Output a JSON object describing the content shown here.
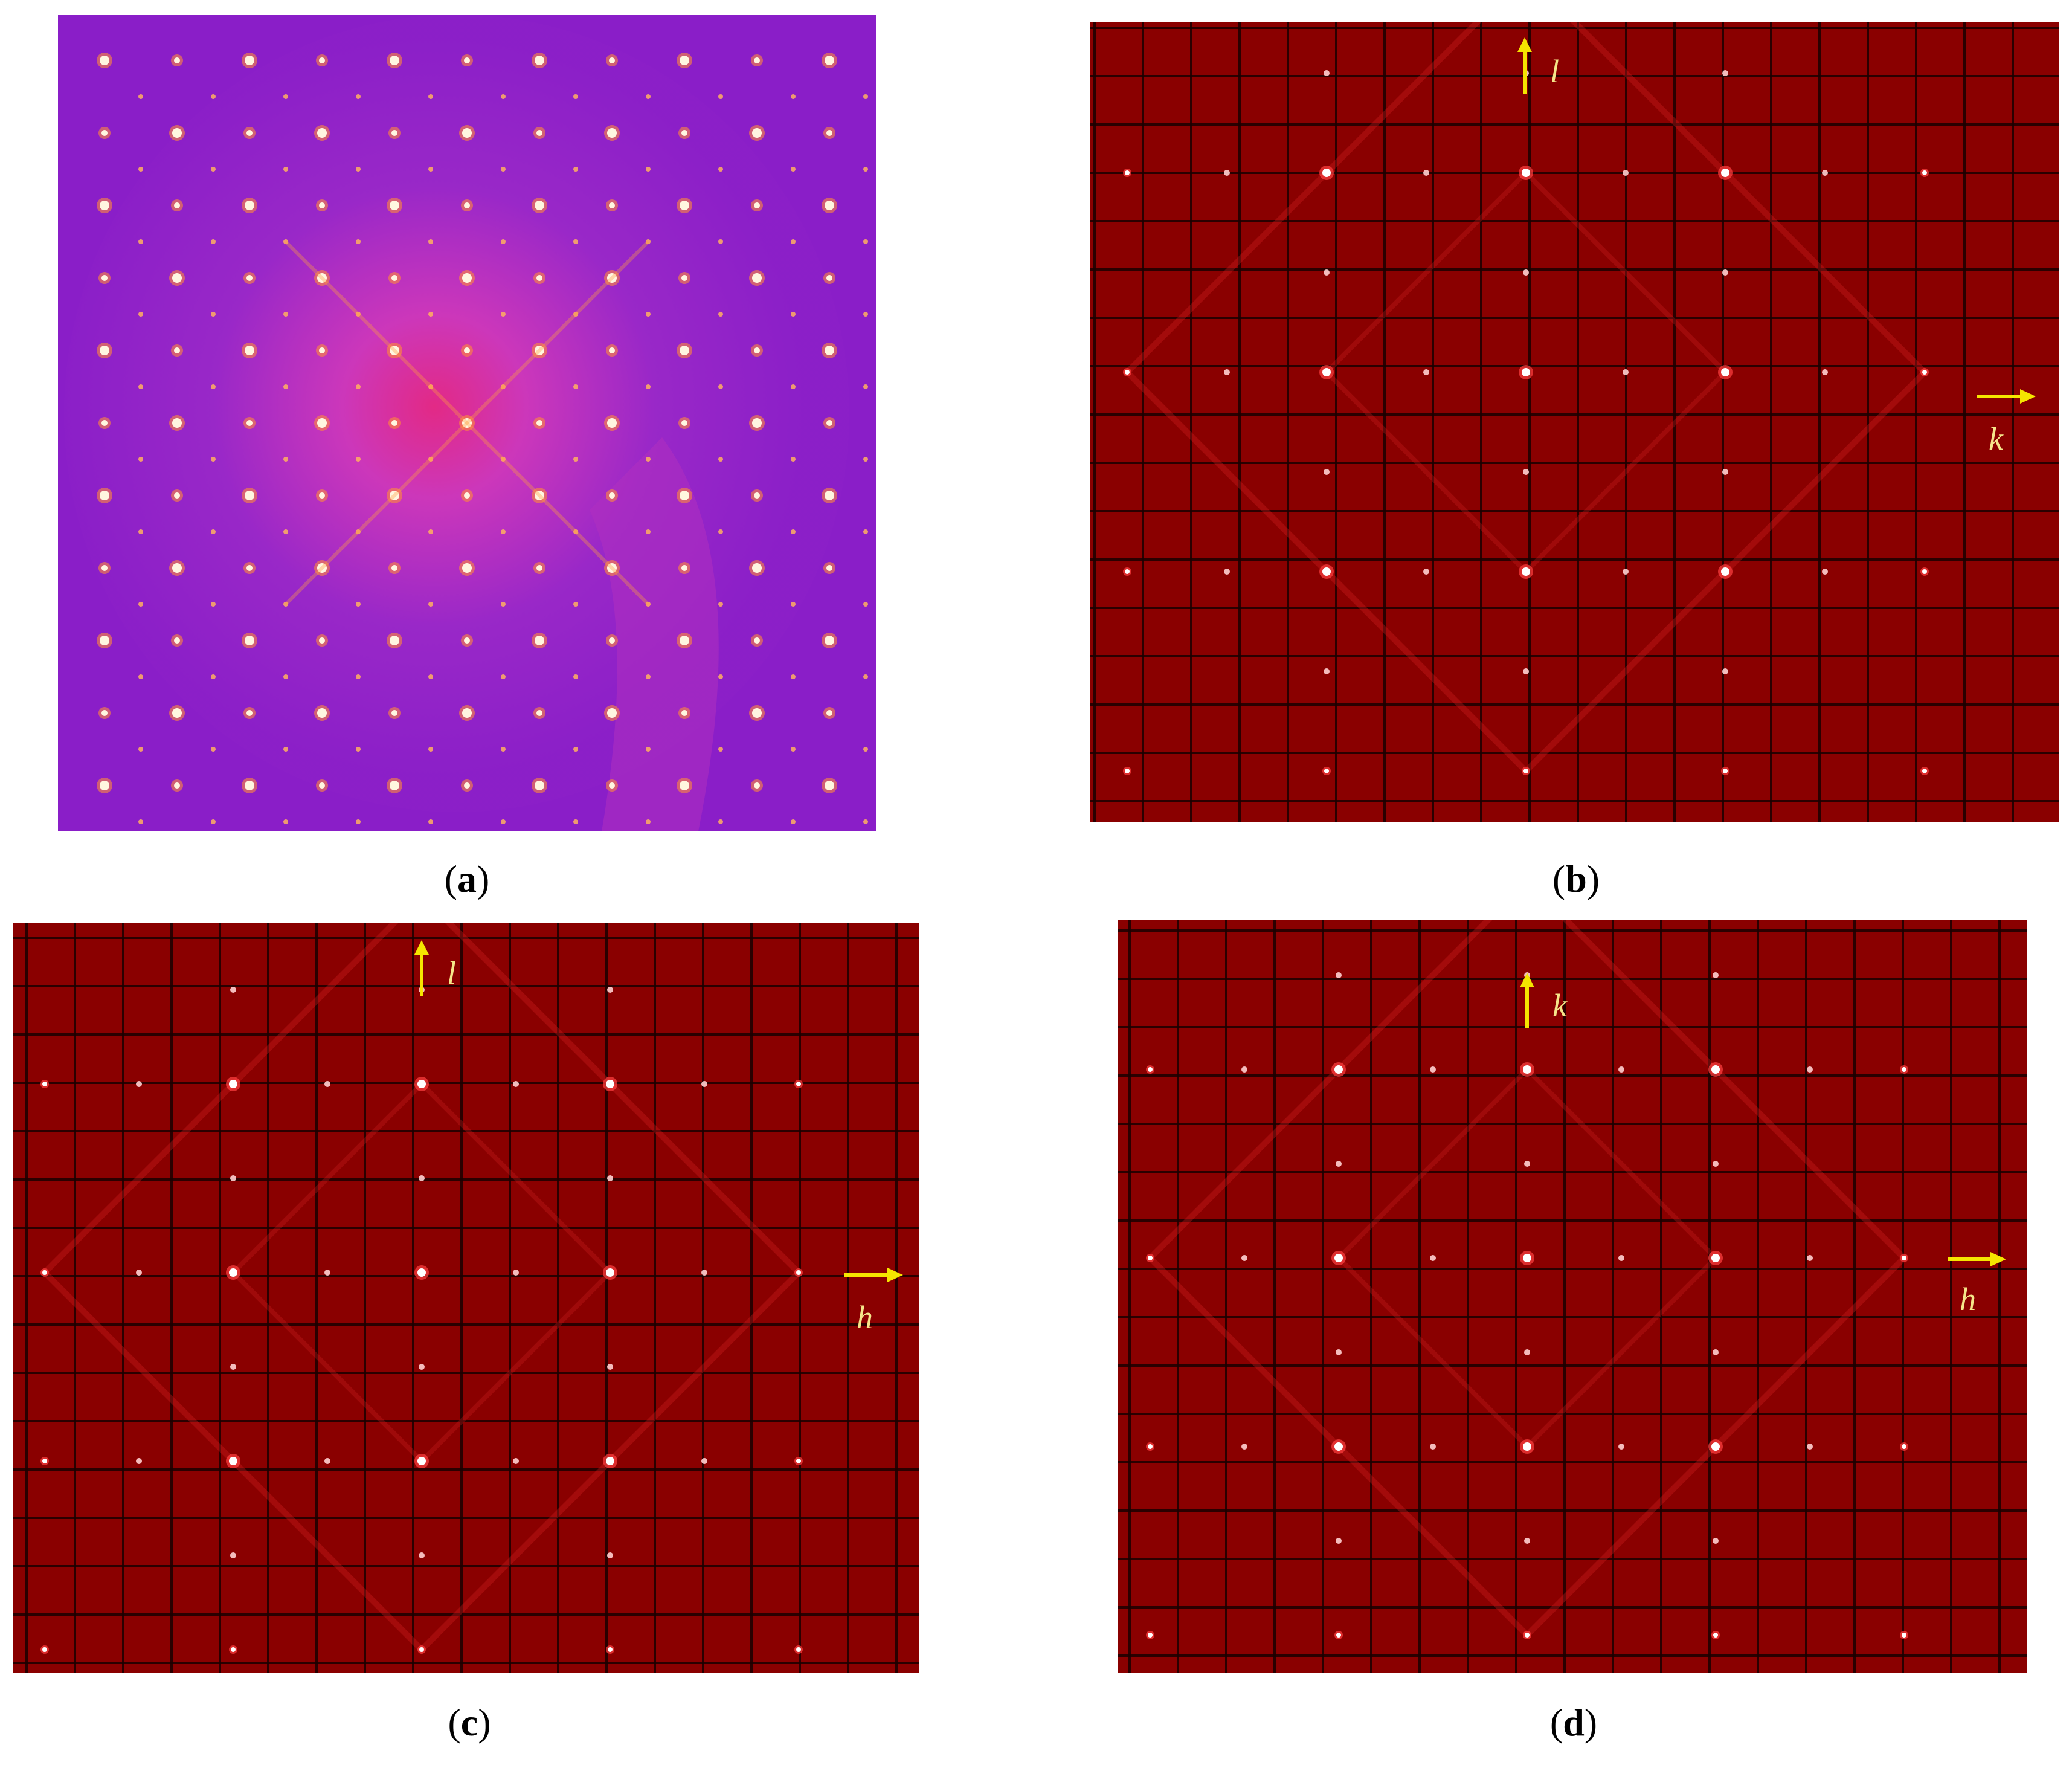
{
  "panels": {
    "a": {
      "letter": "a",
      "colors": {
        "bg": "#8a1ec8",
        "glow": "#e83a9a"
      }
    },
    "b": {
      "letter": "b",
      "axes": {
        "up": "l",
        "right": "k"
      },
      "colors": {
        "bg": "#8a0000",
        "grid": "#1a0000",
        "arrow": "#f5e500"
      }
    },
    "c": {
      "letter": "c",
      "axes": {
        "up": "l",
        "right": "h"
      },
      "colors": {
        "bg": "#8a0000",
        "grid": "#1a0000",
        "arrow": "#f5e500"
      }
    },
    "d": {
      "letter": "d",
      "axes": {
        "up": "k",
        "right": "h"
      },
      "colors": {
        "bg": "#8a0000",
        "grid": "#1a0000",
        "arrow": "#f5e500"
      }
    }
  }
}
